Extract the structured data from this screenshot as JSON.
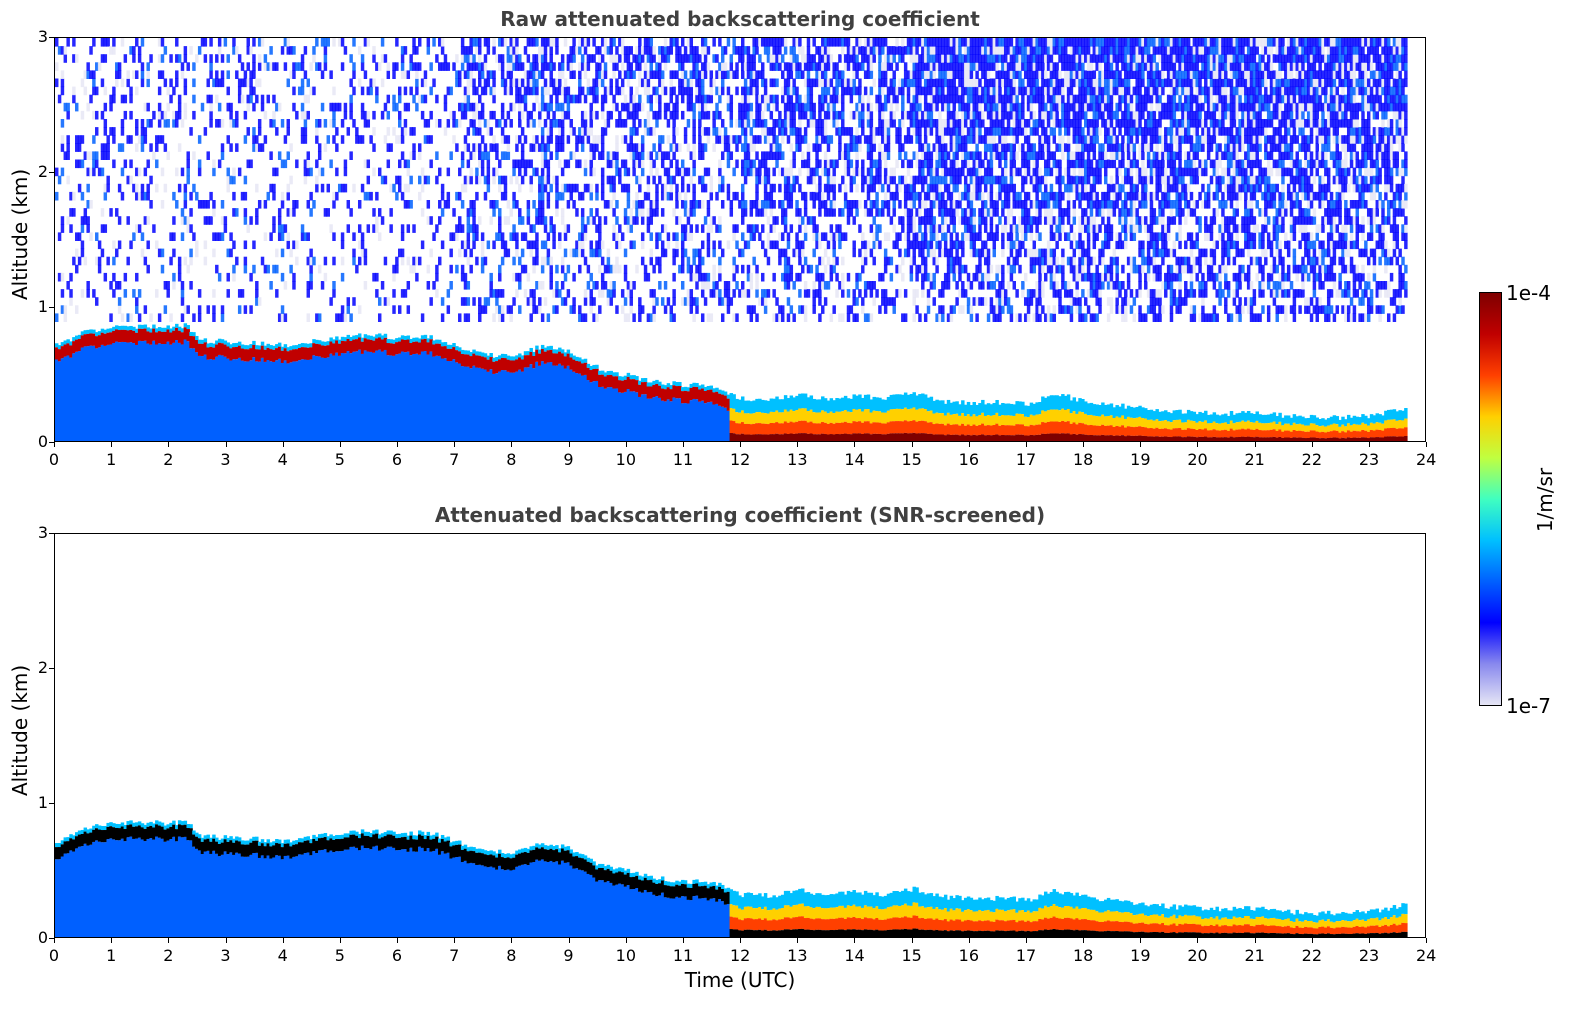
{
  "chart_data": [
    {
      "type": "heatmap",
      "title": "Raw attenuated backscattering coefficient",
      "xlabel": "",
      "ylabel": "Altitude (km)",
      "xlim": [
        0,
        24
      ],
      "ylim": [
        0,
        3
      ],
      "xticks": [
        "0",
        "1",
        "2",
        "3",
        "4",
        "5",
        "6",
        "7",
        "8",
        "9",
        "10",
        "11",
        "12",
        "13",
        "14",
        "15",
        "16",
        "17",
        "18",
        "19",
        "20",
        "21",
        "22",
        "23",
        "24"
      ],
      "yticks": [
        "0",
        "1",
        "2",
        "3"
      ],
      "data_end_time": 23.65,
      "layer_top_km": [
        [
          0.0,
          0.72
        ],
        [
          0.5,
          0.82
        ],
        [
          1.0,
          0.86
        ],
        [
          1.5,
          0.86
        ],
        [
          2.0,
          0.86
        ],
        [
          2.3,
          0.87
        ],
        [
          2.5,
          0.76
        ],
        [
          3.0,
          0.75
        ],
        [
          3.5,
          0.74
        ],
        [
          4.0,
          0.72
        ],
        [
          4.5,
          0.76
        ],
        [
          5.0,
          0.78
        ],
        [
          5.5,
          0.8
        ],
        [
          6.0,
          0.78
        ],
        [
          6.5,
          0.79
        ],
        [
          7.0,
          0.72
        ],
        [
          7.5,
          0.66
        ],
        [
          8.0,
          0.63
        ],
        [
          8.5,
          0.72
        ],
        [
          9.0,
          0.67
        ],
        [
          9.5,
          0.55
        ],
        [
          10.0,
          0.5
        ],
        [
          10.5,
          0.45
        ],
        [
          11.0,
          0.43
        ],
        [
          11.5,
          0.42
        ],
        [
          11.8,
          0.35
        ],
        [
          12.0,
          0.33
        ],
        [
          12.5,
          0.32
        ],
        [
          13.0,
          0.36
        ],
        [
          13.5,
          0.33
        ],
        [
          14.0,
          0.35
        ],
        [
          14.5,
          0.33
        ],
        [
          15.0,
          0.37
        ],
        [
          15.5,
          0.31
        ],
        [
          16.0,
          0.3
        ],
        [
          16.5,
          0.3
        ],
        [
          17.0,
          0.29
        ],
        [
          17.5,
          0.36
        ],
        [
          18.0,
          0.31
        ],
        [
          18.5,
          0.28
        ],
        [
          19.0,
          0.26
        ],
        [
          19.5,
          0.24
        ],
        [
          20.0,
          0.23
        ],
        [
          20.5,
          0.22
        ],
        [
          21.0,
          0.23
        ],
        [
          21.5,
          0.2
        ],
        [
          22.0,
          0.19
        ],
        [
          22.5,
          0.19
        ],
        [
          23.0,
          0.2
        ],
        [
          23.65,
          0.26
        ]
      ],
      "colorbar": {
        "min_label": "1e-7",
        "max_label": "1e-4",
        "label": "1/m/sr"
      }
    },
    {
      "type": "heatmap",
      "title": "Attenuated backscattering coefficient (SNR-screened)",
      "xlabel": "Time (UTC)",
      "ylabel": "Altitude (km)",
      "xlim": [
        0,
        24
      ],
      "ylim": [
        0,
        3
      ],
      "xticks": [
        "0",
        "1",
        "2",
        "3",
        "4",
        "5",
        "6",
        "7",
        "8",
        "9",
        "10",
        "11",
        "12",
        "13",
        "14",
        "15",
        "16",
        "17",
        "18",
        "19",
        "20",
        "21",
        "22",
        "23",
        "24"
      ],
      "yticks": [
        "0",
        "1",
        "2",
        "3"
      ],
      "data_end_time": 23.65
    }
  ],
  "colors": {
    "title": "#404040",
    "colormap": [
      "#e6e6f5",
      "#8888ee",
      "#0000ff",
      "#0060ff",
      "#00c0ff",
      "#40ffc0",
      "#c0ff40",
      "#ffd000",
      "#ff4000",
      "#c00000",
      "#7f0000"
    ],
    "saturated": "#000000"
  }
}
